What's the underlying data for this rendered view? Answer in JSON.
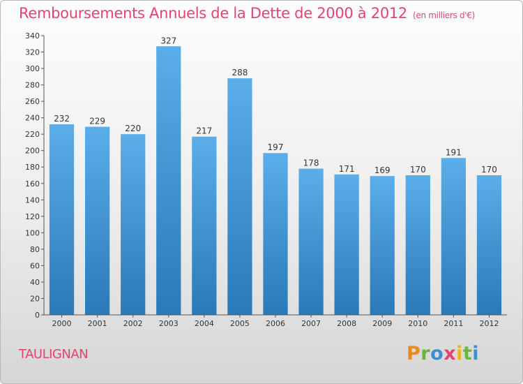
{
  "header": {
    "title": "Remboursements Annuels de la Dette de 2000 à 2012",
    "unit": "(en milliers d'€)"
  },
  "footer": {
    "place": "TAULIGNAN",
    "brand": "Proxiti"
  },
  "colors": {
    "accent": "#e2446f",
    "bar_top": "#5aaee9",
    "bar_bottom": "#2a79b8"
  },
  "chart_data": {
    "type": "bar",
    "title": "Remboursements Annuels de la Dette de 2000 à 2012",
    "xlabel": "",
    "ylabel": "",
    "categories": [
      "2000",
      "2001",
      "2002",
      "2003",
      "2004",
      "2005",
      "2006",
      "2007",
      "2008",
      "2009",
      "2010",
      "2011",
      "2012"
    ],
    "values": [
      232,
      229,
      220,
      327,
      217,
      288,
      197,
      178,
      171,
      169,
      170,
      191,
      170
    ],
    "ylim": [
      0,
      340
    ],
    "yticks": [
      0,
      20,
      40,
      60,
      80,
      100,
      120,
      140,
      160,
      180,
      200,
      220,
      240,
      260,
      280,
      300,
      320,
      340
    ],
    "grid": false,
    "legend": "none"
  }
}
